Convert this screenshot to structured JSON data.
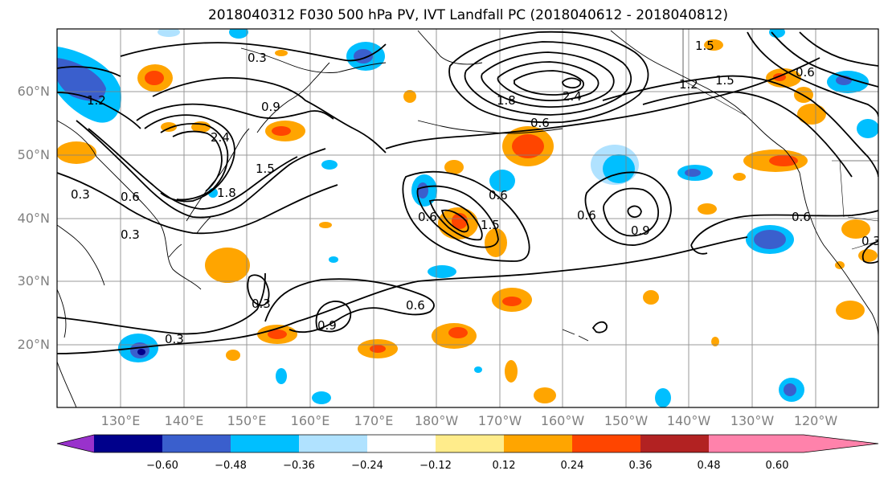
{
  "title": "2018040312 F030 500 hPa PV, IVT Landfall PC (2018040612 - 2018040812)",
  "lat_labels": [
    "60°N",
    "50°N",
    "40°N",
    "30°N",
    "20°N"
  ],
  "lon_labels": [
    "130°E",
    "140°E",
    "150°E",
    "160°E",
    "170°E",
    "180°W",
    "170°W",
    "160°W",
    "150°W",
    "140°W",
    "130°W",
    "120°W"
  ],
  "colorbar": {
    "colors": [
      "#9932cc",
      "#00008b",
      "#3a5fcd",
      "#00bfff",
      "#b0e2ff",
      "#ffffff",
      "#ffec8b",
      "#ffa500",
      "#ff4500",
      "#b22222",
      "#ff82ab"
    ],
    "tick_labels": [
      "−0.60",
      "−0.48",
      "−0.36",
      "−0.24",
      "−0.12",
      "0.12",
      "0.24",
      "0.36",
      "0.48",
      "0.60"
    ]
  },
  "contour_labels": [
    "0.3",
    "1.2",
    "0.9",
    "2.4",
    "1.5",
    "1.8",
    "0.6",
    "0.3",
    "0.3",
    "0.3",
    "0.9",
    "0.6",
    "0.3",
    "0.6",
    "1.5",
    "0.6",
    "0.9",
    "0.6",
    "0.6",
    "1.8",
    "2.4",
    "1.2",
    "1.5",
    "1.5",
    "0.6",
    "0.6",
    "0.3"
  ]
}
